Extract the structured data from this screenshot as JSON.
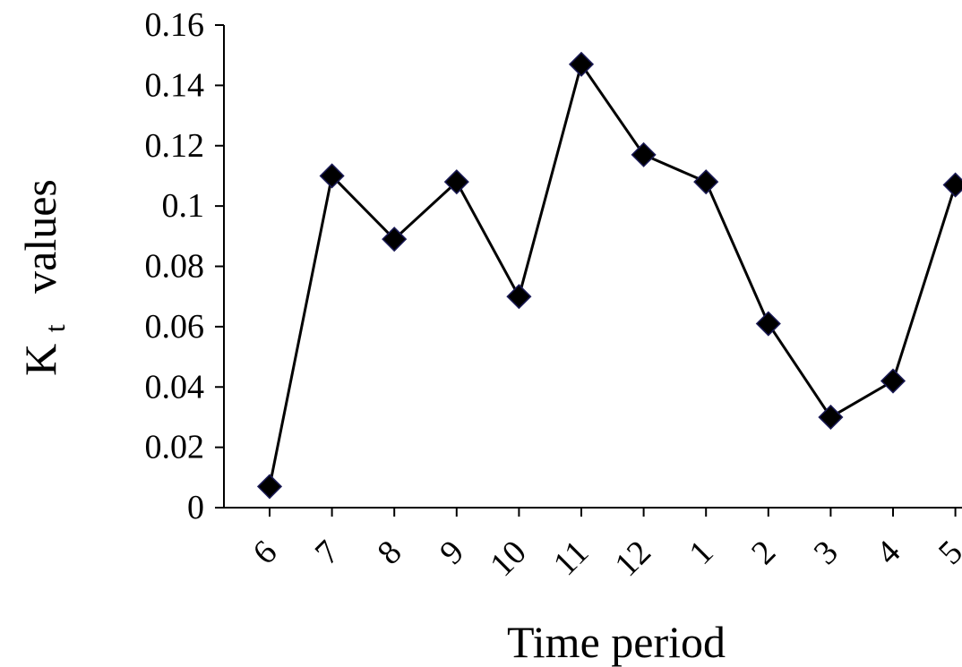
{
  "chart_data": {
    "type": "line",
    "title": "",
    "xlabel": "Time period",
    "ylabel": {
      "main": "K",
      "subscript": "t",
      "rest": "values"
    },
    "categories": [
      "6",
      "7",
      "8",
      "9",
      "10",
      "11",
      "12",
      "1",
      "2",
      "3",
      "4",
      "5"
    ],
    "series": [
      {
        "values": [
          0.007,
          0.11,
          0.089,
          0.108,
          0.07,
          0.147,
          0.117,
          0.108,
          0.061,
          0.03,
          0.042,
          0.107
        ]
      }
    ],
    "ylim": [
      0,
      0.16
    ],
    "yticks": [
      "0",
      "0.02",
      "0.04",
      "0.06",
      "0.08",
      "0.1",
      "0.12",
      "0.14",
      "0.16"
    ],
    "ytick_values": [
      0,
      0.02,
      0.04,
      0.06,
      0.08,
      0.1,
      0.12,
      0.14,
      0.16
    ],
    "grid": false,
    "legend": "none",
    "marker": "diamond",
    "colors": {
      "line": "#000000",
      "marker": "#000000",
      "marker_edge": "#1a1a55"
    }
  }
}
